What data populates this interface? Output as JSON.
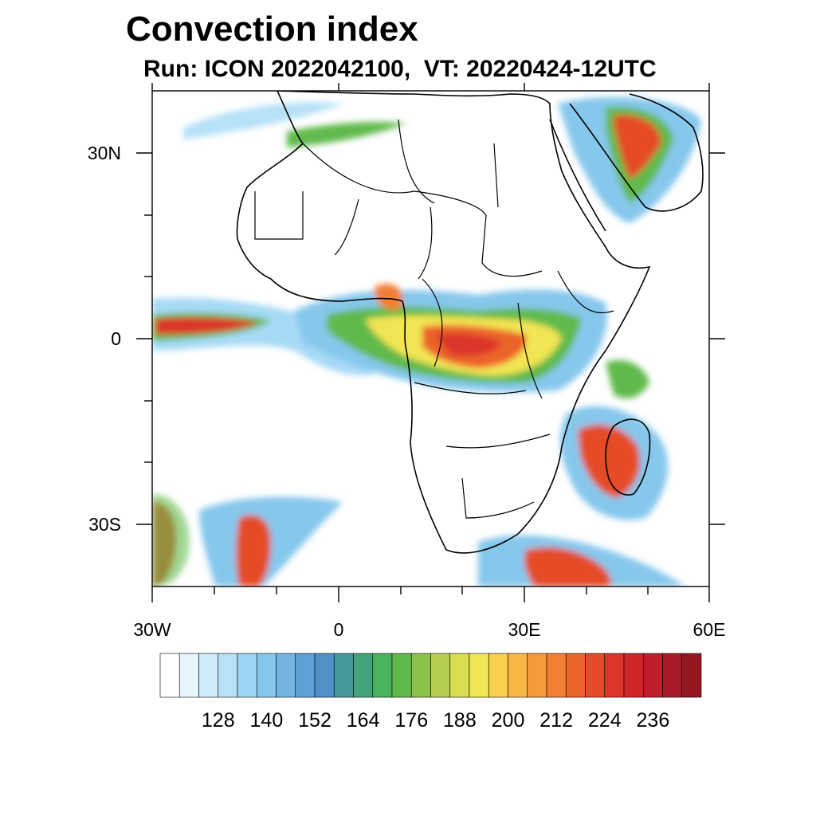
{
  "title": "Convection index",
  "subtitle": "Run: ICON 2022042100,  VT: 20220424-12UTC",
  "axes": {
    "x_ticks": [
      "30W",
      "0",
      "30E",
      "60E"
    ],
    "y_ticks": [
      "30N",
      "0",
      "30S"
    ]
  },
  "colorbar": {
    "labels": [
      "128",
      "140",
      "152",
      "164",
      "176",
      "188",
      "200",
      "212",
      "224",
      "236"
    ],
    "colors": [
      "#ffffff",
      "#e6f5fc",
      "#cdeaf9",
      "#b6e1f7",
      "#9dd6f5",
      "#86c7ec",
      "#72b4e2",
      "#5ea1d6",
      "#4f90c6",
      "#44999a",
      "#43a47b",
      "#49b25c",
      "#60ba4b",
      "#8cc24c",
      "#b3cf4d",
      "#d7dd4f",
      "#f2e553",
      "#f9cf4e",
      "#f9b746",
      "#f79a3c",
      "#f27f34",
      "#ec632c",
      "#e54b28",
      "#dc3529",
      "#cf262a",
      "#bd1f29",
      "#a91b26",
      "#951620"
    ]
  },
  "colors": {
    "coast": "#000000",
    "frame": "#000000"
  }
}
